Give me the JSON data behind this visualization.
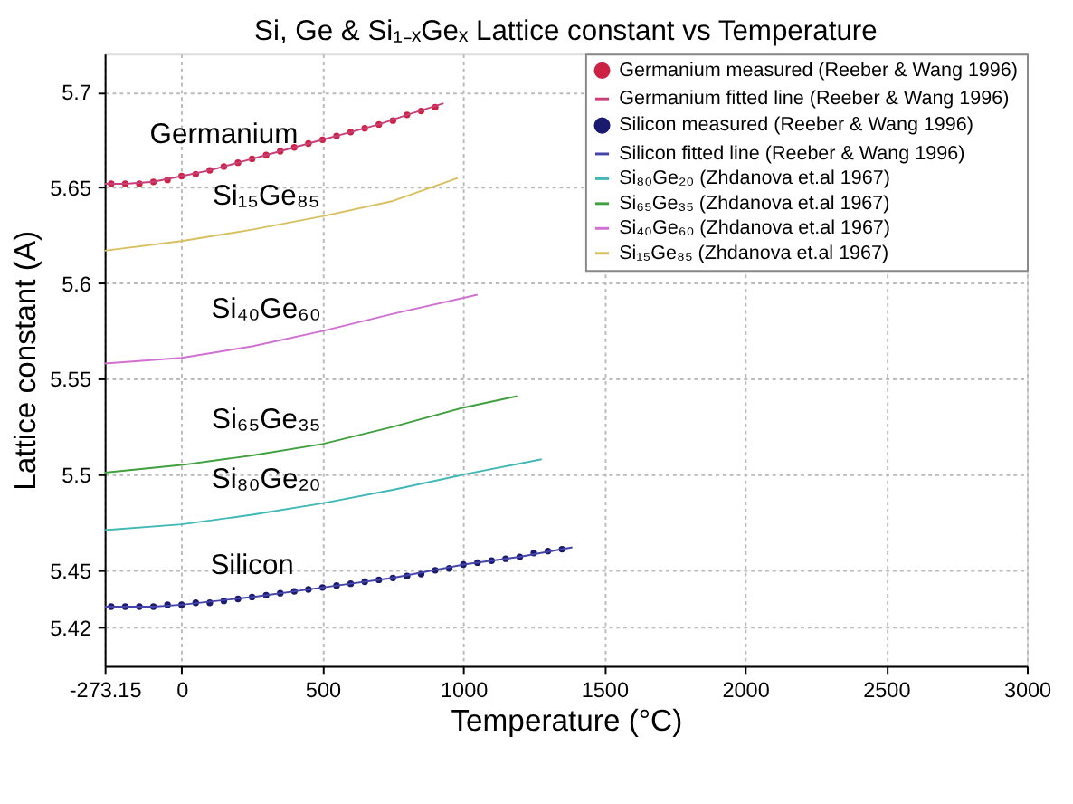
{
  "chart_data": {
    "type": "line",
    "title": "Si, Ge & Si₁₋ₓGeₓ Lattice constant vs Temperature",
    "xlabel": "Temperature (°C)",
    "ylabel": "Lattice constant (A)",
    "xlim": [
      -273.15,
      3000
    ],
    "xticks": [
      -273.15,
      0,
      500,
      1000,
      1500,
      2000,
      2500,
      3000
    ],
    "ylim": [
      5.4,
      5.72
    ],
    "yticks": [
      5.42,
      5.45,
      5.5,
      5.55,
      5.6,
      5.65,
      5.7
    ],
    "grid": true,
    "legend": "top right",
    "series": [
      {
        "name": "Germanium measured (Reeber & Wang 1996)",
        "type": "scatter",
        "marker": "circle",
        "color": "#cc2244",
        "x": [
          -250,
          -200,
          -150,
          -100,
          -50,
          0,
          50,
          100,
          150,
          200,
          250,
          300,
          350,
          400,
          450,
          500,
          550,
          600,
          650,
          700,
          750,
          800,
          850,
          900
        ],
        "values": [
          5.652,
          5.652,
          5.652,
          5.653,
          5.654,
          5.656,
          5.657,
          5.659,
          5.661,
          5.663,
          5.665,
          5.667,
          5.669,
          5.671,
          5.673,
          5.675,
          5.677,
          5.679,
          5.681,
          5.683,
          5.685,
          5.688,
          5.69,
          5.692
        ]
      },
      {
        "name": "Germanium fitted line (Reeber & Wang 1996)",
        "color": "#c8407a",
        "x": [
          -273.15,
          -200,
          -100,
          0,
          100,
          200,
          300,
          400,
          500,
          600,
          700,
          800,
          930
        ],
        "values": [
          5.652,
          5.652,
          5.653,
          5.656,
          5.659,
          5.663,
          5.667,
          5.671,
          5.675,
          5.679,
          5.683,
          5.688,
          5.694
        ]
      },
      {
        "name": "Silicon measured (Reeber & Wang 1996)",
        "type": "scatter",
        "marker": "circle",
        "color": "#1a1a6e",
        "x": [
          -250,
          -200,
          -150,
          -100,
          -50,
          0,
          50,
          100,
          150,
          200,
          250,
          300,
          350,
          400,
          450,
          500,
          550,
          600,
          650,
          700,
          750,
          800,
          850,
          900,
          950,
          1000,
          1050,
          1100,
          1150,
          1200,
          1250,
          1300,
          1350
        ],
        "values": [
          5.431,
          5.431,
          5.431,
          5.431,
          5.432,
          5.432,
          5.433,
          5.433,
          5.434,
          5.435,
          5.436,
          5.437,
          5.438,
          5.439,
          5.44,
          5.441,
          5.442,
          5.443,
          5.444,
          5.445,
          5.446,
          5.447,
          5.448,
          5.45,
          5.451,
          5.453,
          5.454,
          5.455,
          5.456,
          5.457,
          5.459,
          5.46,
          5.461
        ]
      },
      {
        "name": "Silicon fitted line (Reeber & Wang 1996)",
        "color": "#4444aa",
        "x": [
          -273.15,
          -100,
          0,
          250,
          500,
          750,
          1000,
          1200,
          1387
        ],
        "values": [
          5.431,
          5.431,
          5.432,
          5.436,
          5.441,
          5.446,
          5.453,
          5.457,
          5.462
        ]
      },
      {
        "name": "Si₈₀Ge₂₀ (Zhdanova et.al 1967)",
        "color": "#40b8b8",
        "x": [
          -273.15,
          0,
          250,
          500,
          750,
          1000,
          1278
        ],
        "values": [
          5.471,
          5.474,
          5.479,
          5.485,
          5.492,
          5.5,
          5.508
        ]
      },
      {
        "name": "Si₆₅Ge₃₅ (Zhdanova et.al 1967)",
        "color": "#40a040",
        "x": [
          -273.15,
          0,
          250,
          500,
          750,
          1000,
          1191
        ],
        "values": [
          5.501,
          5.505,
          5.51,
          5.516,
          5.525,
          5.535,
          5.541
        ]
      },
      {
        "name": "Si₄₀Ge₆₀ (Zhdanova et.al 1967)",
        "color": "#d070d0",
        "x": [
          -273.15,
          0,
          250,
          500,
          750,
          1050
        ],
        "values": [
          5.558,
          5.561,
          5.567,
          5.575,
          5.584,
          5.594
        ]
      },
      {
        "name": "Si₁₅Ge₈₅ (Zhdanova et.al 1967)",
        "color": "#d8c060",
        "x": [
          -273.15,
          0,
          250,
          500,
          750,
          980
        ],
        "values": [
          5.617,
          5.622,
          5.628,
          5.635,
          5.643,
          5.655
        ]
      }
    ],
    "annotations": [
      {
        "text": "Germanium",
        "x": 150,
        "y": 5.661
      },
      {
        "text": "Si₁₅Ge₈₅",
        "x": 300,
        "y": 5.629
      },
      {
        "text": "Si₄₀Ge₆₀",
        "x": 300,
        "y": 5.57
      },
      {
        "text": "Si₆₅Ge₃₅",
        "x": 300,
        "y": 5.512
      },
      {
        "text": "Si₈₀Ge₂₀",
        "x": 300,
        "y": 5.481
      },
      {
        "text": "Silicon",
        "x": 250,
        "y": 5.436
      }
    ]
  }
}
